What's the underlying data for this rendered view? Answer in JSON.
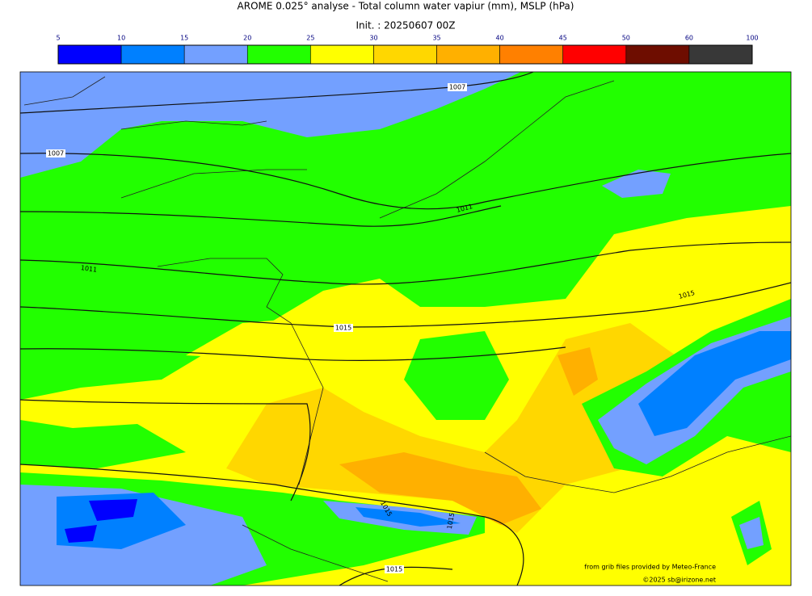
{
  "title": "AROME 0.025° analyse - Total column water vapiur (mm), MSLP (hPa)",
  "subtitle": "Init. : 20250607 00Z",
  "colorbar": {
    "ticks": [
      5,
      10,
      15,
      20,
      25,
      30,
      35,
      40,
      45,
      50,
      60,
      100
    ],
    "colors": [
      "#0000ff",
      "#0080ff",
      "#73a0ff",
      "#22ff00",
      "#ffff00",
      "#ffd700",
      "#ffb000",
      "#ff8000",
      "#ff0000",
      "#6e0d00",
      "#383838"
    ]
  },
  "isobar_labels": [
    "1007",
    "1007",
    "1011",
    "1011",
    "1015",
    "1015",
    "1015",
    "1015",
    "1015"
  ],
  "credits": [
    "from grib files provided by Meteo-France",
    "©2025 sb@irizone.net"
  ]
}
